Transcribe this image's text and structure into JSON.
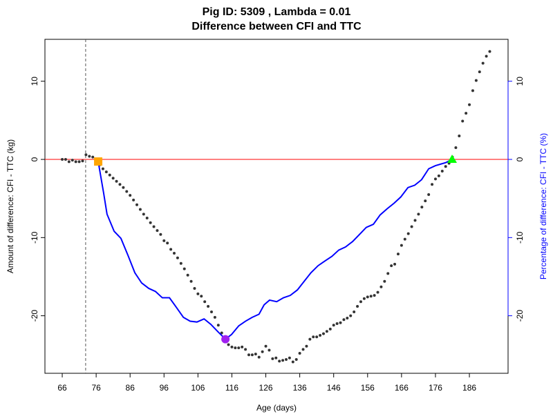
{
  "chart_data": {
    "type": "scatter",
    "title": "Pig ID: 5309 , Lambda = 0.01",
    "subtitle": "Difference between CFI and TTC",
    "x_label": "Age (days)",
    "y_label": "Amount of difference: CFI - TTC (kg)",
    "y2_label": "Percentage of difference: CFI - TTC (%)",
    "y2_color": "#0000ff",
    "xlim": [
      60.9,
      197.4
    ],
    "ylim": [
      -27.36,
      15.36
    ],
    "y2lim": [
      -27.36,
      15.36
    ],
    "xticks": [
      66,
      76,
      86,
      96,
      106,
      116,
      126,
      136,
      146,
      156,
      166,
      176,
      186
    ],
    "yticks": [
      -20,
      -10,
      0,
      10
    ],
    "y2ticks": [
      -20,
      -10,
      0,
      10
    ],
    "hline": {
      "value": 0,
      "color": "#ff0000"
    },
    "vline": {
      "value": 72.9,
      "color": "#555555"
    },
    "series": [
      {
        "type": "points",
        "color": "#333333",
        "x": [
          66,
          67,
          68,
          69,
          70,
          71,
          72,
          73,
          74,
          75,
          76,
          77,
          78,
          79,
          80,
          81,
          82,
          83,
          84,
          85,
          86,
          87,
          88,
          89,
          90,
          91,
          92,
          93,
          94,
          95,
          96,
          97,
          98,
          99,
          100,
          101,
          102,
          103,
          104,
          105,
          106,
          107,
          108,
          109,
          110,
          111,
          112,
          113,
          114,
          115,
          116,
          117,
          118,
          119,
          120,
          121,
          122,
          123,
          124,
          125,
          126,
          127,
          128,
          129,
          130,
          131,
          132,
          133,
          134,
          135,
          136,
          137,
          138,
          139,
          140,
          141,
          142,
          143,
          144,
          145,
          146,
          147,
          148,
          149,
          150,
          151,
          152,
          153,
          154,
          155,
          156,
          157,
          158,
          159,
          160,
          161,
          162,
          163,
          164,
          165,
          166,
          167,
          168,
          169,
          170,
          171,
          172,
          173,
          174,
          175,
          176,
          177,
          178,
          179,
          180,
          181,
          182,
          183,
          184,
          185,
          186,
          187,
          188,
          189,
          190,
          191,
          192
        ],
        "values": [
          0.0,
          0.0,
          -0.3,
          -0.1,
          -0.3,
          -0.3,
          -0.2,
          0.6,
          0.4,
          0.3,
          -0.2,
          -0.7,
          -1.2,
          -1.6,
          -2.0,
          -2.4,
          -2.8,
          -3.2,
          -3.6,
          -4.1,
          -4.6,
          -5.2,
          -5.8,
          -6.4,
          -7.0,
          -7.5,
          -8.1,
          -8.6,
          -9.1,
          -9.6,
          -10.4,
          -10.7,
          -11.5,
          -12.0,
          -12.6,
          -13.3,
          -14.0,
          -14.8,
          -15.6,
          -16.5,
          -17.2,
          -17.5,
          -18.2,
          -18.8,
          -19.5,
          -20.2,
          -21.2,
          -22.2,
          -23.0,
          -23.7,
          -24.0,
          -24.1,
          -24.1,
          -24.0,
          -24.3,
          -25.0,
          -25.0,
          -24.9,
          -25.3,
          -24.6,
          -23.9,
          -24.4,
          -25.5,
          -25.4,
          -25.8,
          -25.7,
          -25.6,
          -25.4,
          -25.9,
          -25.6,
          -24.8,
          -24.3,
          -23.9,
          -23.0,
          -22.7,
          -22.7,
          -22.5,
          -22.3,
          -22.0,
          -21.7,
          -21.2,
          -21.0,
          -20.9,
          -20.5,
          -20.3,
          -20.0,
          -19.5,
          -18.8,
          -18.2,
          -17.8,
          -17.6,
          -17.5,
          -17.4,
          -17.0,
          -16.3,
          -15.6,
          -14.6,
          -13.6,
          -13.4,
          -12.1,
          -11.0,
          -10.2,
          -9.5,
          -8.6,
          -7.8,
          -7.0,
          -6.1,
          -5.3,
          -4.5,
          -3.2,
          -2.5,
          -2.1,
          -1.5,
          -0.9,
          -0.5,
          0.3,
          1.5,
          3.0,
          4.9,
          5.9,
          7.0,
          8.8,
          10.1,
          11.2,
          12.3,
          13.2,
          13.8
        ]
      },
      {
        "type": "line",
        "axis": "y2",
        "color": "#0000ff",
        "x": [
          76.6,
          78.2,
          79.2,
          81.3,
          83.3,
          85.4,
          87.4,
          89.4,
          91.5,
          93.5,
          95.5,
          97.6,
          99.6,
          101.7,
          103.7,
          105.7,
          107.8,
          109.8,
          111.8,
          114.1,
          115.9,
          118,
          120,
          122,
          124,
          125.5,
          127.1,
          129.2,
          131.2,
          133.2,
          135.3,
          137.3,
          139.3,
          141.4,
          143.4,
          145.5,
          147.5,
          149.5,
          151.6,
          153.6,
          155.6,
          157.7,
          159.7,
          161.8,
          163.8,
          165.8,
          167.9,
          169.9,
          171.9,
          174,
          176,
          179.1,
          180.9
        ],
        "values": [
          -0.27,
          -4.3,
          -7,
          -9.2,
          -10.1,
          -12.3,
          -14.5,
          -15.8,
          -16.5,
          -16.9,
          -17.7,
          -17.7,
          -18.9,
          -20.2,
          -20.7,
          -20.8,
          -20.4,
          -21.1,
          -22,
          -23,
          -22.4,
          -21.3,
          -20.7,
          -20.2,
          -19.8,
          -18.6,
          -18,
          -18.2,
          -17.7,
          -17.4,
          -16.7,
          -15.6,
          -14.5,
          -13.6,
          -13,
          -12.4,
          -11.6,
          -11.2,
          -10.5,
          -9.6,
          -8.7,
          -8.3,
          -7.1,
          -6.3,
          -5.6,
          -4.8,
          -3.6,
          -3.3,
          -2.6,
          -1.2,
          -0.8,
          -0.4,
          0
        ]
      }
    ],
    "markers": [
      {
        "shape": "square",
        "color": "#ffa500",
        "x": 76.6,
        "y": -0.27
      },
      {
        "shape": "circle",
        "color": "#a020f0",
        "x": 114.1,
        "y": -23
      },
      {
        "shape": "triangle",
        "color": "#00ff00",
        "x": 180.9,
        "y": 0
      }
    ]
  }
}
